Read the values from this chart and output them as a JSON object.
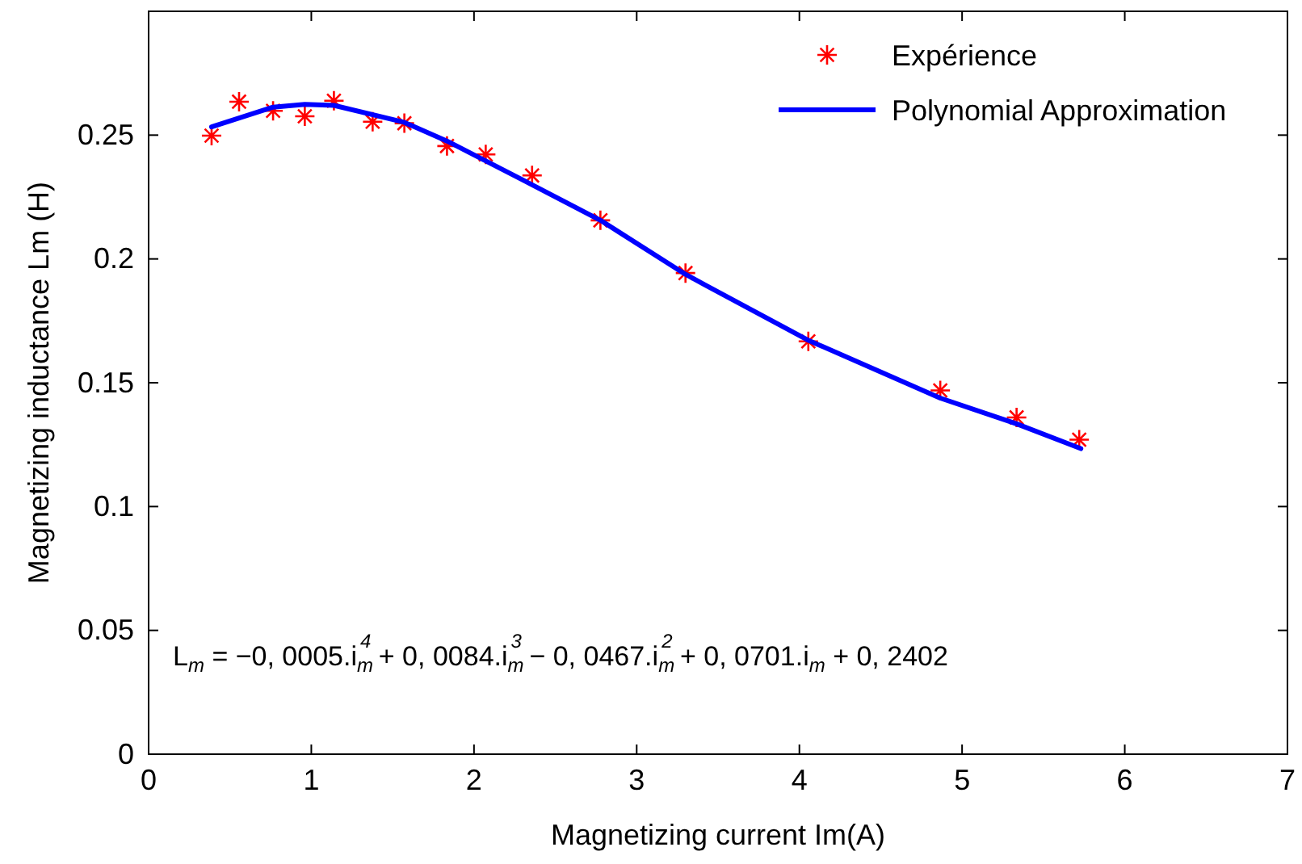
{
  "chart_data": {
    "type": "line",
    "xlabel": "Magnetizing current  Im(A)",
    "ylabel": "Magnetizing inductance Lm  (H)",
    "xlim": [
      0,
      7
    ],
    "xticks": [
      0,
      1,
      2,
      3,
      4,
      5,
      6,
      7
    ],
    "ylim": [
      0,
      0.3
    ],
    "yticks": [
      0,
      0.05,
      0.1,
      0.15,
      0.2,
      0.25
    ],
    "grid": false,
    "legend": "top right",
    "series": [
      {
        "name": "Expérience",
        "type": "scatter",
        "marker": "cross",
        "color": "#ff0000",
        "x": [
          0.387,
          0.556,
          0.765,
          0.96,
          1.139,
          1.377,
          1.572,
          1.834,
          2.072,
          2.357,
          2.777,
          3.3,
          4.055,
          4.866,
          5.335,
          5.72
        ],
        "values": [
          0.2498,
          0.2635,
          0.2598,
          0.2576,
          0.2639,
          0.2554,
          0.2548,
          0.2456,
          0.2422,
          0.2337,
          0.2156,
          0.1943,
          0.1667,
          0.1469,
          0.136,
          0.127
        ]
      },
      {
        "name": "Polynomial Approximation",
        "type": "line",
        "line_style": "solid",
        "color": "#0000ff",
        "x": [
          0.387,
          0.765,
          0.96,
          1.139,
          1.57,
          1.834,
          2.3,
          2.777,
          3.3,
          3.42,
          4.05,
          4.866,
          5.335,
          5.73
        ],
        "values": [
          0.2533,
          0.2613,
          0.2624,
          0.262,
          0.2552,
          0.2476,
          0.2319,
          0.2156,
          0.1938,
          0.1895,
          0.1673,
          0.1438,
          0.1334,
          0.1234
        ]
      }
    ],
    "annotations": [
      "L$_{m}$ = −0, 0005.i$_{m}$$^{4}$ + 0, 0084.i$_{m}$$^{3}$ − 0, 0467.i$_{m}$$^{2}$ + 0, 0701.i$_{m}$ + 0, 2402"
    ]
  }
}
